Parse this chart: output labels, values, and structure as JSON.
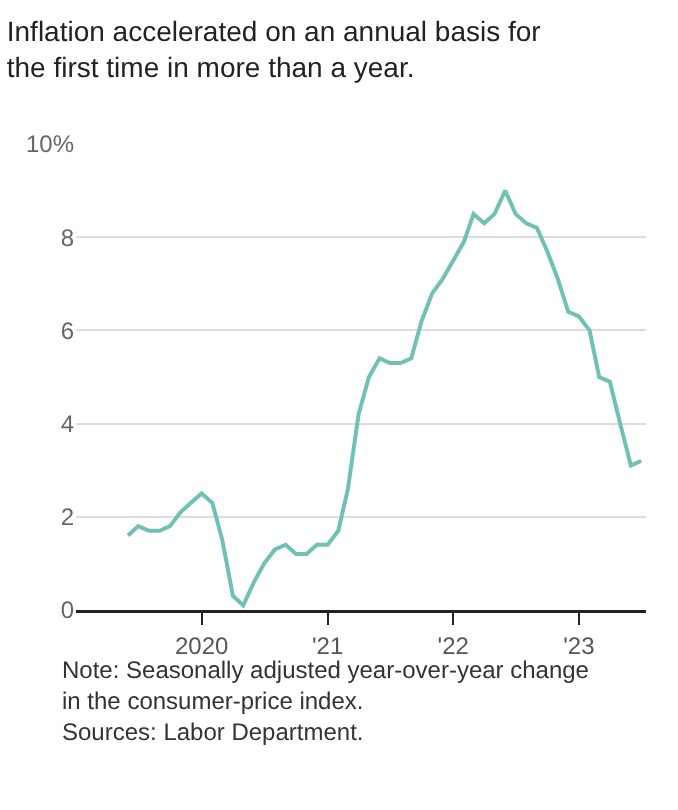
{
  "chart_data": {
    "type": "line",
    "title": "Inflation accelerated on an annual basis for the first time in more than a year.",
    "x": [
      "2019-06",
      "2019-07",
      "2019-08",
      "2019-09",
      "2019-10",
      "2019-11",
      "2019-12",
      "2020-01",
      "2020-02",
      "2020-03",
      "2020-04",
      "2020-05",
      "2020-06",
      "2020-07",
      "2020-08",
      "2020-09",
      "2020-10",
      "2020-11",
      "2020-12",
      "2021-01",
      "2021-02",
      "2021-03",
      "2021-04",
      "2021-05",
      "2021-06",
      "2021-07",
      "2021-08",
      "2021-09",
      "2021-10",
      "2021-11",
      "2021-12",
      "2022-01",
      "2022-02",
      "2022-03",
      "2022-04",
      "2022-05",
      "2022-06",
      "2022-07",
      "2022-08",
      "2022-09",
      "2022-10",
      "2022-11",
      "2022-12",
      "2023-01",
      "2023-02",
      "2023-03",
      "2023-04",
      "2023-05",
      "2023-06",
      "2023-07"
    ],
    "series": [
      {
        "color": "#6fc2b3",
        "values": [
          1.6,
          1.8,
          1.7,
          1.7,
          1.8,
          2.1,
          2.3,
          2.5,
          2.3,
          1.5,
          0.3,
          0.1,
          0.6,
          1.0,
          1.3,
          1.4,
          1.2,
          1.2,
          1.4,
          1.4,
          1.7,
          2.6,
          4.2,
          5.0,
          5.4,
          5.3,
          5.3,
          5.4,
          6.2,
          6.8,
          7.1,
          7.5,
          7.9,
          8.5,
          8.3,
          8.5,
          9.0,
          8.5,
          8.3,
          8.2,
          7.7,
          7.1,
          6.4,
          6.3,
          6.0,
          5.0,
          4.9,
          4.0,
          3.1,
          3.2
        ]
      }
    ],
    "xlim": [
      "2019-01",
      "2023-07-15"
    ],
    "xticks": [
      {
        "value": "2020-01-01",
        "label": "2020"
      },
      {
        "value": "2021-01-01",
        "label": "'21"
      },
      {
        "value": "2022-01-01",
        "label": "'22"
      },
      {
        "value": "2023-01-01",
        "label": "'23"
      }
    ],
    "ylim": [
      0,
      10
    ],
    "yticks": [
      0,
      2,
      4,
      6,
      8,
      {
        "value": 10,
        "label": "10%"
      }
    ],
    "grid": "y",
    "marker": "none",
    "line_style": "solid",
    "legend": false,
    "annotations": [
      "Note: Seasonally adjusted year-over-year change in the consumer-price index.",
      "Sources: Labor Department."
    ]
  }
}
